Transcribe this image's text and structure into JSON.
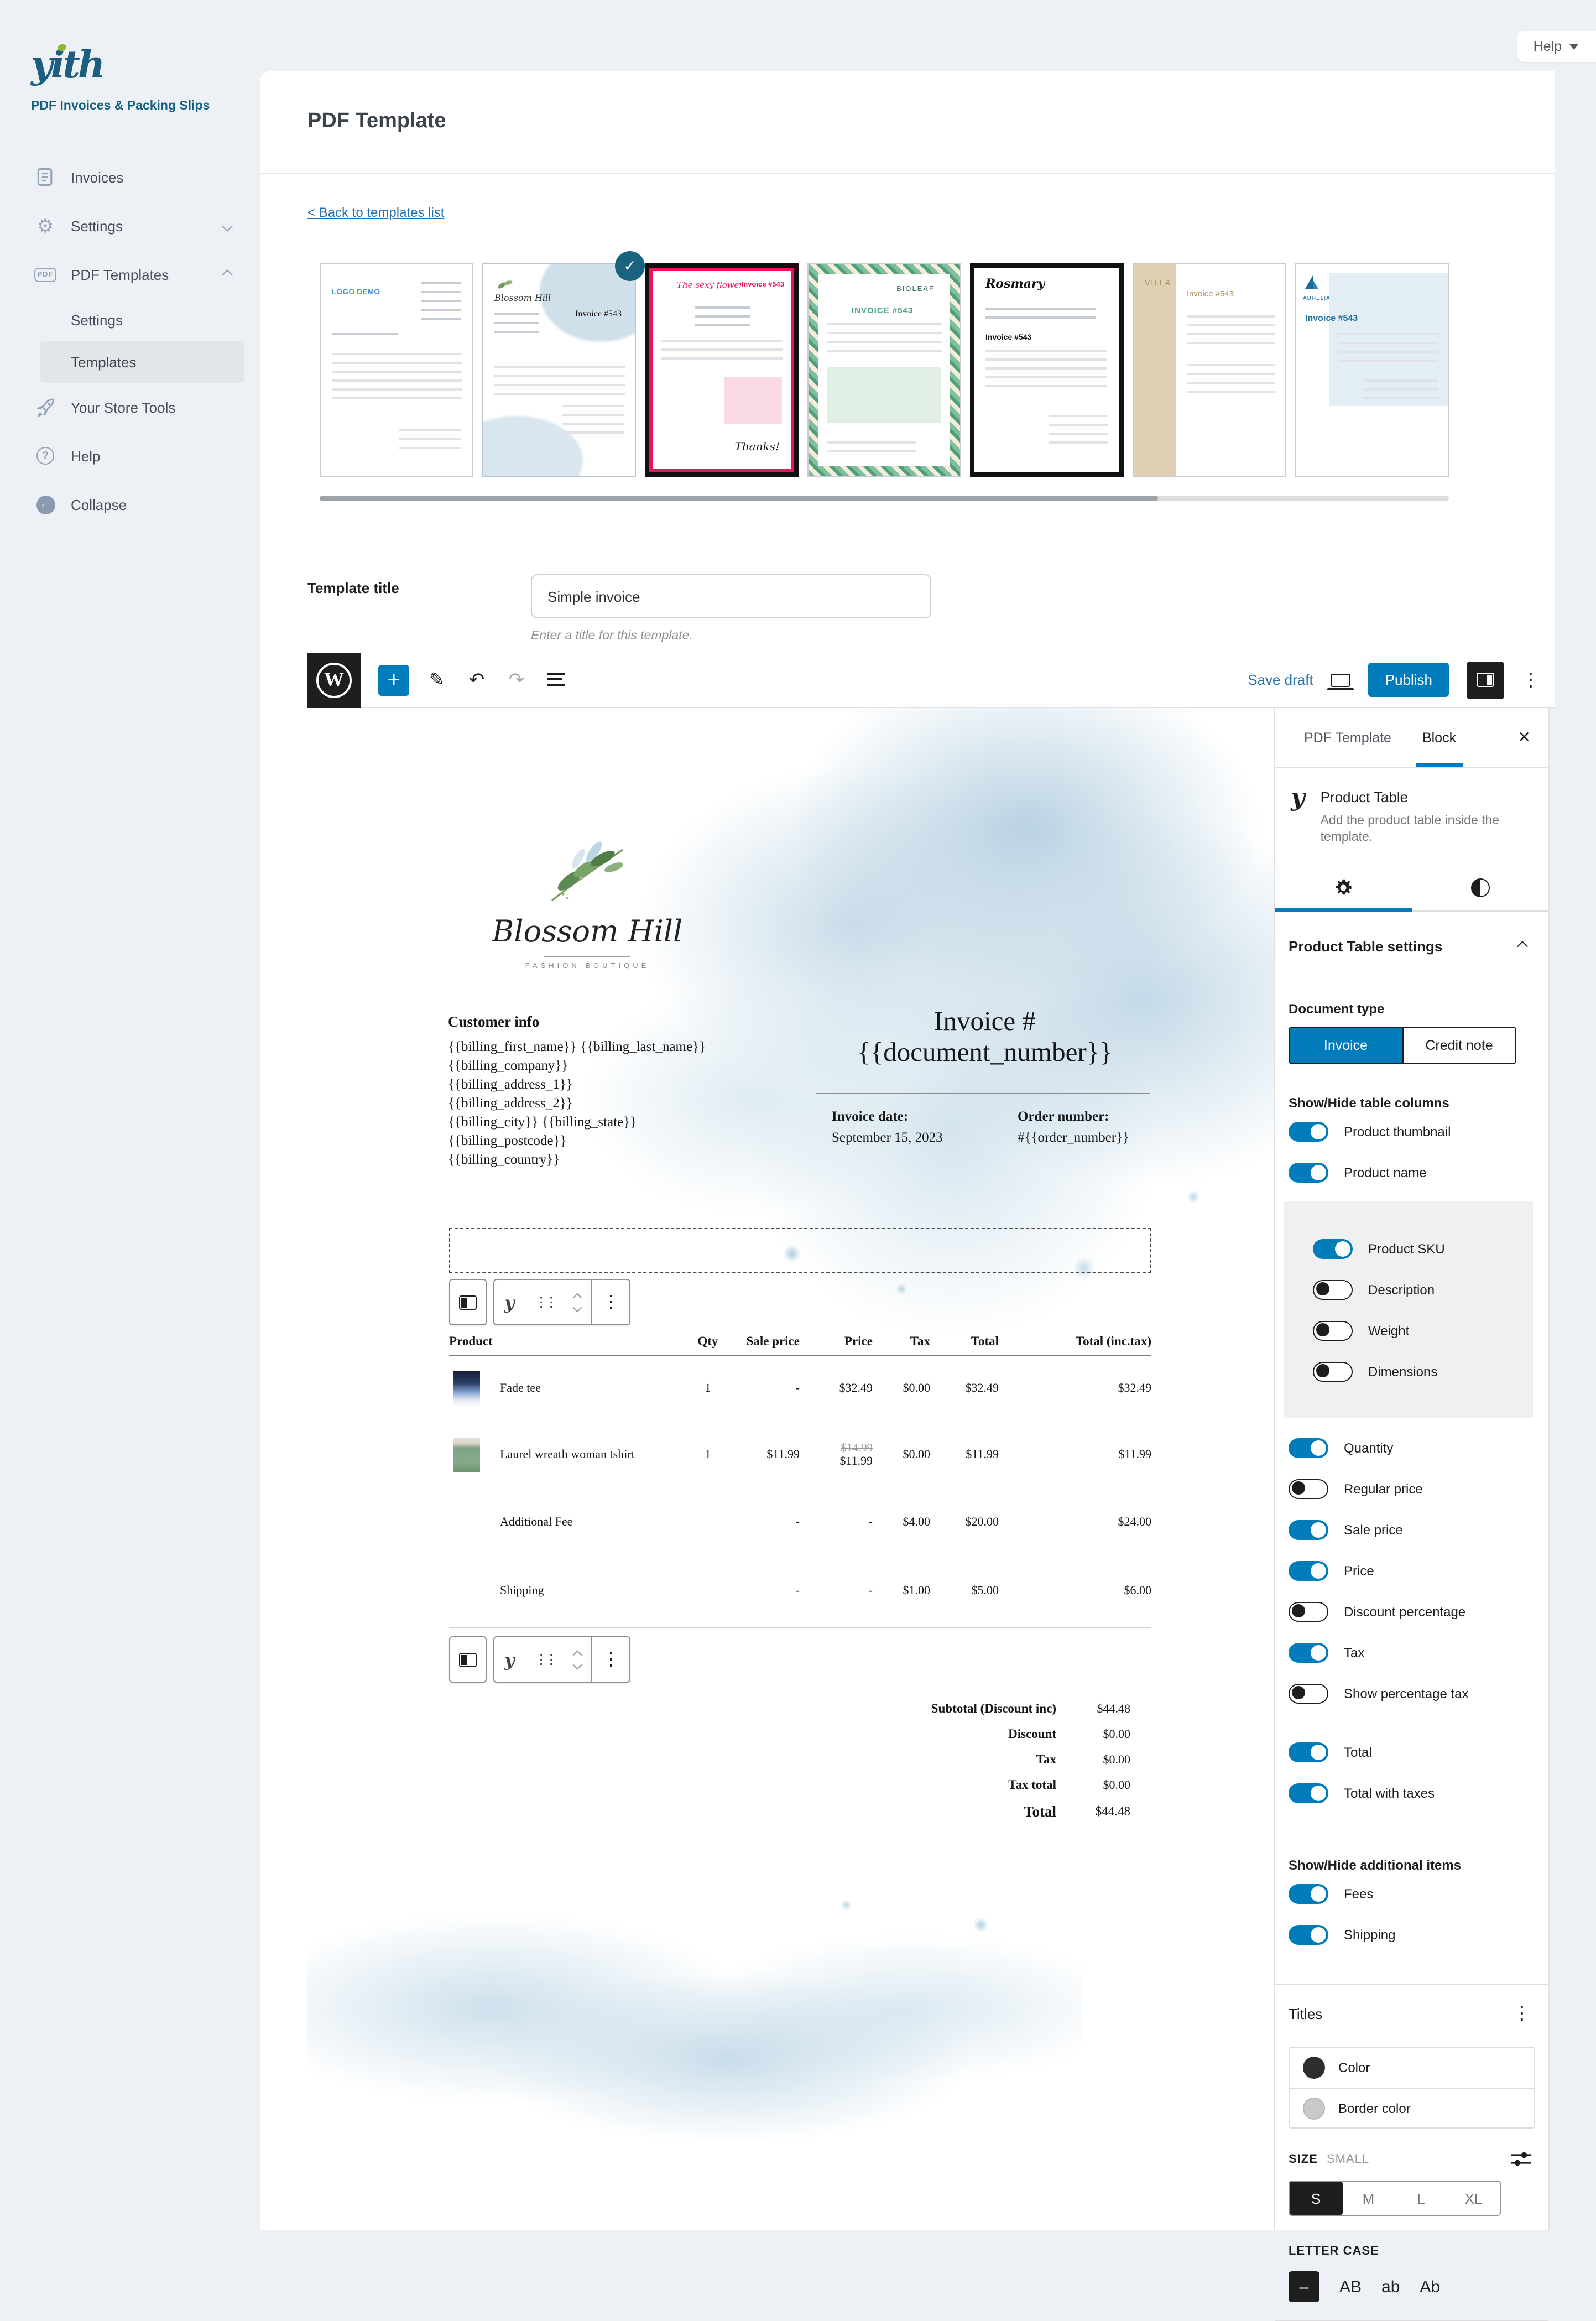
{
  "help_tab": {
    "label": "Help"
  },
  "sidebar": {
    "logo": "yith",
    "subtitle": "PDF Invoices & Packing Slips",
    "items": [
      {
        "label": "Invoices"
      },
      {
        "label": "Settings"
      },
      {
        "label": "PDF Templates"
      }
    ],
    "sub_items": [
      {
        "label": "Settings"
      },
      {
        "label": "Templates"
      }
    ],
    "bottom_items": [
      {
        "label": "Your Store Tools"
      },
      {
        "label": "Help"
      }
    ],
    "collapse_label": "Collapse"
  },
  "page": {
    "title": "PDF Template",
    "back_link": "< Back to templates list"
  },
  "thumbnails": [
    {
      "brand": "LOGO DEMO",
      "invoice": ""
    },
    {
      "brand": "Blossom Hill",
      "invoice": "Invoice #543",
      "selected": true
    },
    {
      "brand": "The sexy flower",
      "invoice": "Invoice #543"
    },
    {
      "brand": "BIOLEAF",
      "invoice": "INVOICE #543"
    },
    {
      "brand": "Rosmary",
      "invoice": "Invoice #543"
    },
    {
      "brand": "VILLA",
      "invoice": "Invoice #543"
    },
    {
      "brand": "AURELIA",
      "invoice": "Invoice #543"
    }
  ],
  "template_title": {
    "label": "Template title",
    "value": "Simple invoice",
    "hint": "Enter a title for this template."
  },
  "toolbar": {
    "save_draft": "Save draft",
    "publish": "Publish"
  },
  "invoice": {
    "brand_name": "Blossom Hill",
    "brand_tagline": "FASHION BOUTIQUE",
    "customer_heading": "Customer info",
    "customer_lines": [
      "{{billing_first_name}} {{billing_last_name}}",
      "{{billing_company}}",
      "{{billing_address_1}}",
      "{{billing_address_2}}",
      "{{billing_city}}  {{billing_state}}",
      "{{billing_postcode}}",
      "{{billing_country}}"
    ],
    "title": "Invoice #{{document_number}}",
    "invoice_date_label": "Invoice date:",
    "invoice_date": "September 15, 2023",
    "order_number_label": "Order number:",
    "order_number": "#{{order_number}}",
    "table": {
      "headers": [
        "Product",
        "Qty",
        "Sale price",
        "Price",
        "Tax",
        "Total",
        "Total (inc.tax)"
      ],
      "rows": [
        {
          "thumb": "fade",
          "name": "Fade tee",
          "qty": "1",
          "sale": "-",
          "price_old": "",
          "price": "$32.49",
          "tax": "$0.00",
          "total": "$32.49",
          "total_inc": "$32.49"
        },
        {
          "thumb": "green",
          "name": "Laurel wreath woman tshirt",
          "qty": "1",
          "sale": "$11.99",
          "price_old": "$14.99",
          "price": "$11.99",
          "tax": "$0.00",
          "total": "$11.99",
          "total_inc": "$11.99"
        },
        {
          "thumb": "",
          "name": "Additional Fee",
          "qty": "",
          "sale": "-",
          "price_old": "",
          "price": "-",
          "tax": "$4.00",
          "total": "$20.00",
          "total_inc": "$24.00"
        },
        {
          "thumb": "",
          "name": "Shipping",
          "qty": "",
          "sale": "-",
          "price_old": "",
          "price": "-",
          "tax": "$1.00",
          "total": "$5.00",
          "total_inc": "$6.00"
        }
      ]
    },
    "totals": [
      {
        "label": "Subtotal (Discount inc)",
        "value": "$44.48"
      },
      {
        "label": "Discount",
        "value": "$0.00"
      },
      {
        "label": "Tax",
        "value": "$0.00"
      },
      {
        "label": "Tax total",
        "value": "$0.00"
      },
      {
        "label": "Total",
        "value": "$44.48",
        "grand": true
      }
    ]
  },
  "inspector": {
    "tabs": [
      "PDF Template",
      "Block"
    ],
    "active_tab": "Block",
    "block_title": "Product Table",
    "block_description": "Add the product table inside the template.",
    "section_title": "Product Table settings",
    "document_type": {
      "label": "Document type",
      "options": [
        "Invoice",
        "Credit note"
      ],
      "selected": "Invoice"
    },
    "columns_heading": "Show/Hide table columns",
    "toggles_top": [
      {
        "label": "Product thumbnail",
        "on": true
      },
      {
        "label": "Product name",
        "on": true
      }
    ],
    "toggles_group": [
      {
        "label": "Product SKU",
        "on": true
      },
      {
        "label": "Description",
        "on": false
      },
      {
        "label": "Weight",
        "on": false
      },
      {
        "label": "Dimensions",
        "on": false
      }
    ],
    "toggles_mid": [
      {
        "label": "Quantity",
        "on": true
      },
      {
        "label": "Regular price",
        "on": false
      },
      {
        "label": "Sale price",
        "on": true
      },
      {
        "label": "Price",
        "on": true
      },
      {
        "label": "Discount percentage",
        "on": false
      },
      {
        "label": "Tax",
        "on": true
      },
      {
        "label": "Show percentage tax",
        "on": false
      }
    ],
    "toggles_totals": [
      {
        "label": "Total",
        "on": true
      },
      {
        "label": "Total with taxes",
        "on": true
      }
    ],
    "additional_heading": "Show/Hide additional items",
    "toggles_additional": [
      {
        "label": "Fees",
        "on": true
      },
      {
        "label": "Shipping",
        "on": true
      }
    ],
    "titles": {
      "heading": "Titles",
      "color_label": "Color",
      "border_color_label": "Border color",
      "color_value": "#2b2d2f",
      "border_color_value": "#c9c9c9",
      "size_label": "SIZE",
      "size_value": "SMALL",
      "sizes": [
        "S",
        "M",
        "L",
        "XL"
      ],
      "size_selected": "S",
      "letter_case_label": "LETTER CASE",
      "letter_cases": [
        "–",
        "AB",
        "ab",
        "Ab"
      ],
      "letter_case_selected": "–"
    },
    "accent_color": "#007cba"
  }
}
